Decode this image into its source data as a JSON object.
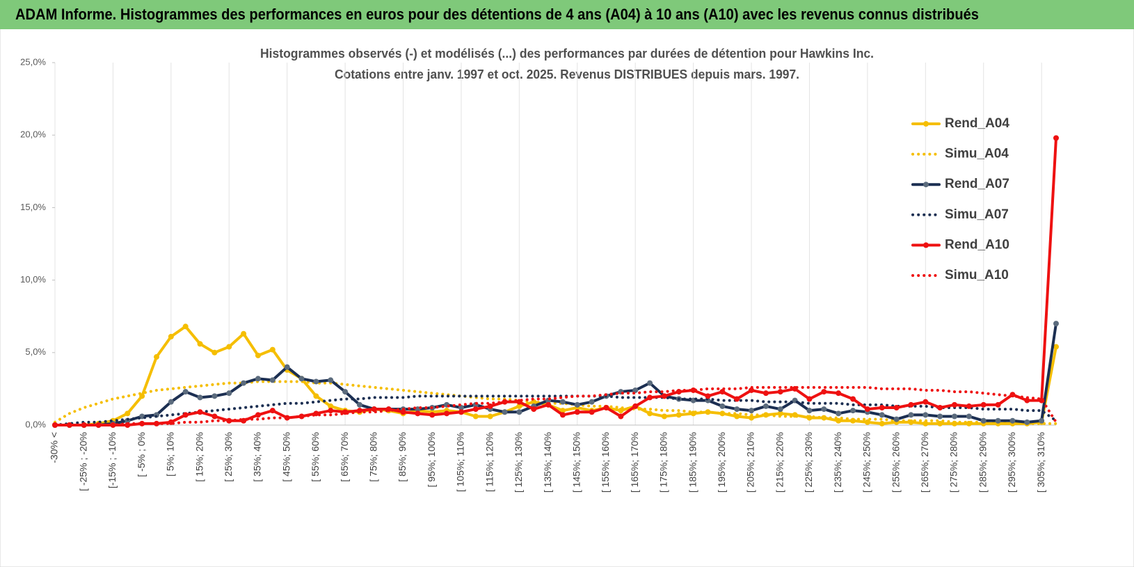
{
  "header": {
    "title": "ADAM Informe. Histogrammes des performances en euros pour des détentions de 4 ans (A04) à 10 ans (A10) avec les revenus connus distribués"
  },
  "chart_data": {
    "type": "line",
    "title": "Histogrammes observés (-) et modélisés (...) des performances par durées de détention pour Hawkins Inc.",
    "subtitle": "Cotations entre janv. 1997 et oct. 2025.  Revenus DISTRIBUES depuis mars. 1997.",
    "categories": [
      "-30% <",
      null,
      "[ -25% ; -20%",
      null,
      "[-15% ; -10%",
      null,
      "[ -5% ; 0%",
      null,
      "[ 5%; 10%",
      null,
      "[ 15%; 20%",
      null,
      "[ 25%; 30%",
      null,
      "[ 35%; 40%",
      null,
      "[ 45%; 50%",
      null,
      "[ 55%; 60%",
      null,
      "[ 65%; 70%",
      null,
      "[ 75%; 80%",
      null,
      "[ 85%; 90%",
      null,
      "[ 95%; 100%",
      null,
      "[ 105%; 110%",
      null,
      "[ 115%; 120%",
      null,
      "[ 125%; 130%",
      null,
      "[ 135%; 140%",
      null,
      "[ 145%; 150%",
      null,
      "[ 155%; 160%",
      null,
      "[ 165%; 170%",
      null,
      "[ 175%; 180%",
      null,
      "[ 185%; 190%",
      null,
      "[ 195%; 200%",
      null,
      "[ 205%; 210%",
      null,
      "[ 215%; 220%",
      null,
      "[ 225%; 230%",
      null,
      "[ 235%; 240%",
      null,
      "[ 245%; 250%",
      null,
      "[ 255%; 260%",
      null,
      "[ 265%; 270%",
      null,
      "[ 275%; 280%",
      null,
      "[ 285%; 290%",
      null,
      "[ 295%; 300%",
      null,
      "[ 305%; 310%",
      null
    ],
    "series": [
      {
        "name": "Rend_A04",
        "color": "#f5be00",
        "style": "solid",
        "markers": true,
        "marker_color": "#f5be00",
        "values": [
          0,
          0,
          0,
          0.1,
          0.3,
          0.8,
          2.0,
          4.7,
          6.1,
          6.8,
          5.6,
          5.0,
          5.4,
          6.3,
          4.8,
          5.2,
          3.8,
          3.2,
          2.0,
          1.3,
          1.0,
          0.9,
          1.1,
          1.0,
          0.8,
          1.0,
          0.9,
          1.0,
          0.9,
          0.6,
          0.6,
          0.9,
          1.3,
          1.6,
          1.4,
          1.0,
          1.2,
          1.0,
          1.2,
          1.0,
          1.3,
          0.8,
          0.6,
          0.7,
          0.8,
          0.9,
          0.8,
          0.6,
          0.5,
          0.7,
          0.8,
          0.7,
          0.5,
          0.5,
          0.3,
          0.3,
          0.2,
          0.1,
          0.2,
          0.2,
          0.1,
          0.1,
          0.1,
          0.1,
          0.1,
          0.1,
          0.1,
          0.1,
          0.2,
          5.4
        ]
      },
      {
        "name": "Simu_A04",
        "color": "#f5be00",
        "style": "dotted",
        "markers": false,
        "values": [
          0.2,
          0.8,
          1.2,
          1.5,
          1.8,
          2.0,
          2.2,
          2.4,
          2.5,
          2.6,
          2.7,
          2.8,
          2.9,
          2.9,
          3.0,
          3.0,
          3.0,
          3.0,
          2.9,
          2.9,
          2.8,
          2.7,
          2.6,
          2.5,
          2.4,
          2.3,
          2.2,
          2.1,
          2.0,
          1.9,
          1.8,
          1.8,
          1.7,
          1.6,
          1.5,
          1.5,
          1.4,
          1.3,
          1.3,
          1.2,
          1.1,
          1.1,
          1.0,
          1.0,
          0.9,
          0.9,
          0.8,
          0.8,
          0.7,
          0.7,
          0.6,
          0.6,
          0.6,
          0.5,
          0.5,
          0.4,
          0.4,
          0.4,
          0.3,
          0.3,
          0.3,
          0.3,
          0.2,
          0.2,
          0.2,
          0.2,
          0.2,
          0.1,
          0.1,
          0.1
        ]
      },
      {
        "name": "Rend_A07",
        "color": "#1c2f52",
        "style": "solid",
        "markers": true,
        "marker_color": "#5b6b7d",
        "values": [
          0,
          0,
          0,
          0,
          0.1,
          0.3,
          0.6,
          0.7,
          1.6,
          2.3,
          1.9,
          2.0,
          2.2,
          2.9,
          3.2,
          3.1,
          4.0,
          3.2,
          3.0,
          3.1,
          2.3,
          1.4,
          1.1,
          1.1,
          1.1,
          1.1,
          1.2,
          1.4,
          1.2,
          1.4,
          1.1,
          0.9,
          0.9,
          1.3,
          1.7,
          1.6,
          1.4,
          1.6,
          2.0,
          2.3,
          2.4,
          2.9,
          2.0,
          1.8,
          1.7,
          1.7,
          1.3,
          1.1,
          1.0,
          1.3,
          1.1,
          1.7,
          1.0,
          1.1,
          0.8,
          1.0,
          0.9,
          0.7,
          0.4,
          0.7,
          0.7,
          0.6,
          0.6,
          0.6,
          0.3,
          0.3,
          0.3,
          0.2,
          0.3,
          7.0
        ]
      },
      {
        "name": "Simu_A07",
        "color": "#1c2f52",
        "style": "dotted",
        "markers": false,
        "values": [
          0,
          0.1,
          0.2,
          0.2,
          0.3,
          0.4,
          0.5,
          0.6,
          0.7,
          0.8,
          0.9,
          1.0,
          1.1,
          1.2,
          1.3,
          1.4,
          1.5,
          1.5,
          1.6,
          1.7,
          1.8,
          1.8,
          1.9,
          1.9,
          1.9,
          2.0,
          2.0,
          2.0,
          2.0,
          2.0,
          2.0,
          2.0,
          2.0,
          2.0,
          2.0,
          2.0,
          2.0,
          2.0,
          2.0,
          1.9,
          1.9,
          1.9,
          1.9,
          1.8,
          1.8,
          1.8,
          1.7,
          1.7,
          1.7,
          1.6,
          1.6,
          1.6,
          1.5,
          1.5,
          1.5,
          1.4,
          1.4,
          1.4,
          1.3,
          1.3,
          1.3,
          1.2,
          1.2,
          1.2,
          1.1,
          1.1,
          1.1,
          1.0,
          1.0,
          0.3
        ]
      },
      {
        "name": "Rend_A10",
        "color": "#ee1111",
        "style": "solid",
        "markers": true,
        "marker_color": "#ee1111",
        "values": [
          0,
          0,
          0,
          0,
          0,
          0,
          0.1,
          0.1,
          0.2,
          0.7,
          0.9,
          0.6,
          0.3,
          0.3,
          0.7,
          1.0,
          0.5,
          0.6,
          0.8,
          1.0,
          0.9,
          1.0,
          1.1,
          1.1,
          0.9,
          0.8,
          0.7,
          0.8,
          0.9,
          1.1,
          1.3,
          1.6,
          1.6,
          1.1,
          1.4,
          0.7,
          0.9,
          0.9,
          1.2,
          0.6,
          1.3,
          1.9,
          2.0,
          2.3,
          2.4,
          2.0,
          2.3,
          1.8,
          2.4,
          2.2,
          2.3,
          2.5,
          1.8,
          2.3,
          2.2,
          1.8,
          1.1,
          1.2,
          1.2,
          1.4,
          1.6,
          1.2,
          1.4,
          1.3,
          1.4,
          1.4,
          2.1,
          1.7,
          1.7,
          19.8
        ]
      },
      {
        "name": "Simu_A10",
        "color": "#ee1111",
        "style": "dotted",
        "markers": false,
        "values": [
          0,
          0,
          0,
          0,
          0,
          0.1,
          0.1,
          0.1,
          0.1,
          0.2,
          0.2,
          0.3,
          0.3,
          0.4,
          0.4,
          0.5,
          0.5,
          0.6,
          0.7,
          0.7,
          0.8,
          0.9,
          0.9,
          1.0,
          1.1,
          1.2,
          1.2,
          1.3,
          1.4,
          1.5,
          1.5,
          1.6,
          1.7,
          1.8,
          1.8,
          1.9,
          2.0,
          2.0,
          2.1,
          2.2,
          2.2,
          2.3,
          2.3,
          2.4,
          2.4,
          2.5,
          2.5,
          2.5,
          2.6,
          2.6,
          2.6,
          2.6,
          2.6,
          2.6,
          2.6,
          2.6,
          2.6,
          2.5,
          2.5,
          2.5,
          2.4,
          2.4,
          2.3,
          2.3,
          2.2,
          2.1,
          2.0,
          1.9,
          1.8,
          0.2
        ]
      }
    ],
    "ylim": [
      0,
      25
    ],
    "yticks": [
      {
        "value": 0,
        "label": "0,0%"
      },
      {
        "value": 5,
        "label": "5,0%"
      },
      {
        "value": 10,
        "label": "10,0%"
      },
      {
        "value": 15,
        "label": "15,0%"
      },
      {
        "value": 20,
        "label": "20,0%"
      },
      {
        "value": 25,
        "label": "25,0%"
      }
    ],
    "legend": "right"
  }
}
